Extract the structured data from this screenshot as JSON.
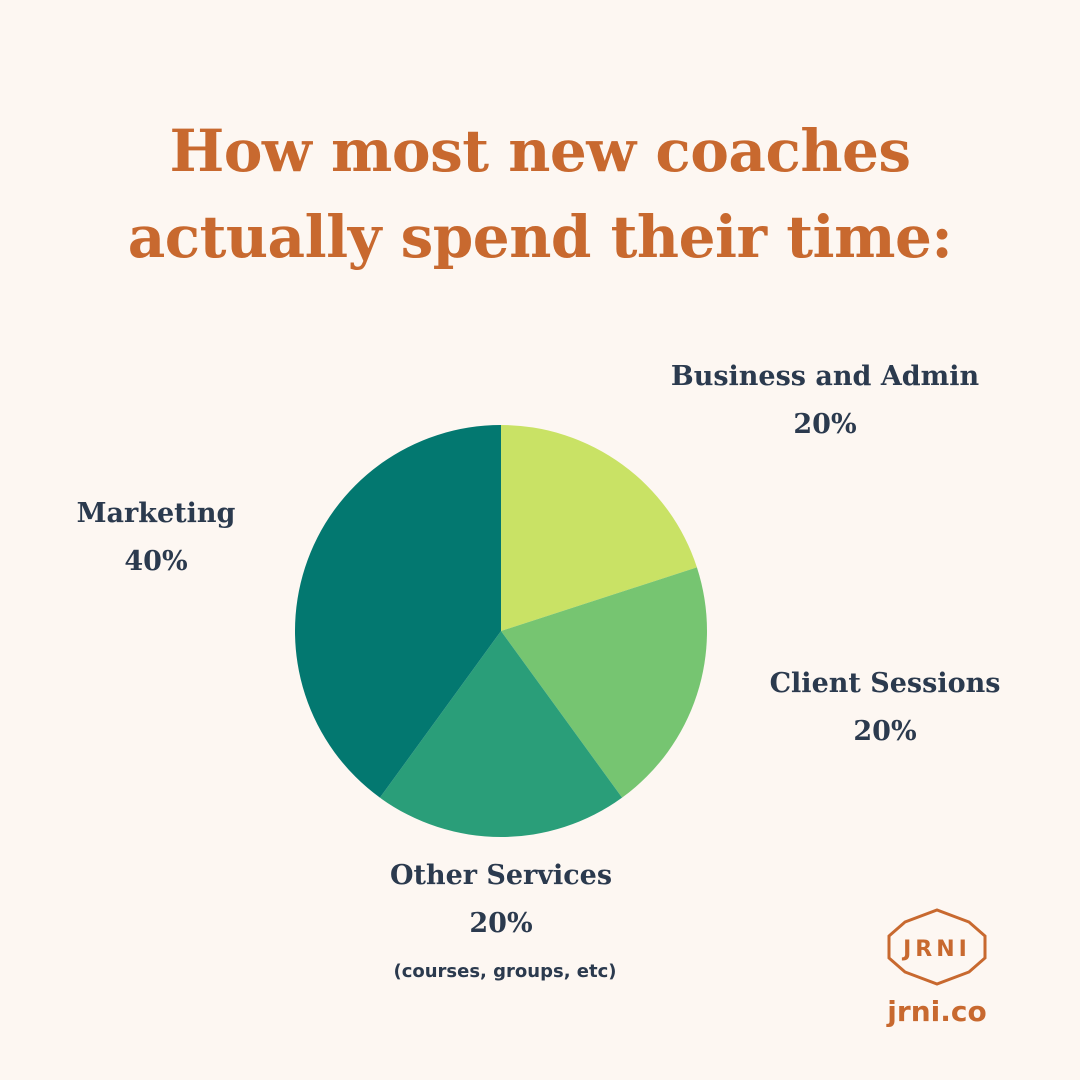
{
  "chart_data": {
    "type": "pie",
    "title": "How most new coaches actually spend their time:",
    "categories": [
      "Business and Admin",
      "Client Sessions",
      "Other Services",
      "Marketing"
    ],
    "values": [
      20,
      20,
      20,
      40
    ],
    "value_labels": [
      "20%",
      "20%",
      "20%",
      "40%"
    ],
    "colors": [
      "#c9e265",
      "#76c571",
      "#2a9e79",
      "#037870"
    ],
    "annotation": "(courses, groups, etc)"
  },
  "logo": {
    "text": "JRNI",
    "url": "jrni.co"
  }
}
